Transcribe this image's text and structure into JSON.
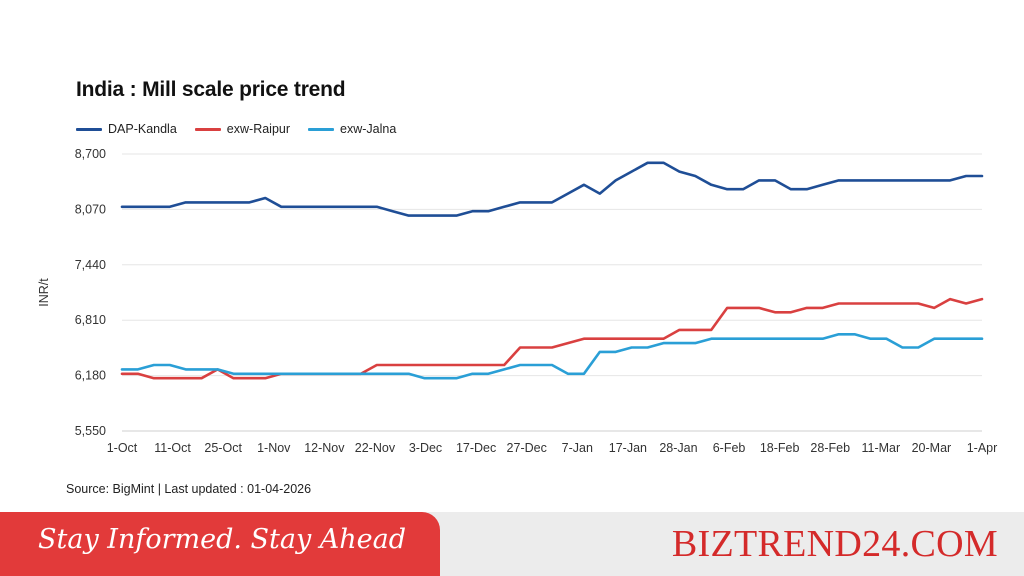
{
  "page": {
    "source_text": "Source: BigMint | Last updated : 01-04-2026",
    "banner_tagline": "Stay Informed. Stay Ahead",
    "brand": "BIZTREND24.COM"
  },
  "chart_data": {
    "type": "line",
    "title": "India : Mill scale price trend",
    "ylabel": "INR/t",
    "xlabel": "",
    "ylim": [
      5550,
      8700
    ],
    "yticks": [
      5550,
      6180,
      6810,
      7440,
      8070,
      8700
    ],
    "ytick_labels": [
      "5,550",
      "6,180",
      "6,810",
      "7,440",
      "8,070",
      "8,700"
    ],
    "xtick_labels": [
      "1-Oct",
      "11-Oct",
      "25-Oct",
      "1-Nov",
      "12-Nov",
      "22-Nov",
      "3-Dec",
      "17-Dec",
      "27-Dec",
      "7-Jan",
      "17-Jan",
      "28-Jan",
      "6-Feb",
      "18-Feb",
      "28-Feb",
      "11-Mar",
      "20-Mar",
      "1-Apr"
    ],
    "grid": true,
    "legend_position": "top-left",
    "series": [
      {
        "name": "DAP-Kandla",
        "color": "#1f4e96",
        "values": [
          8100,
          8100,
          8100,
          8100,
          8150,
          8150,
          8150,
          8150,
          8150,
          8200,
          8100,
          8100,
          8100,
          8100,
          8100,
          8100,
          8100,
          8050,
          8000,
          8000,
          8000,
          8000,
          8050,
          8050,
          8100,
          8150,
          8150,
          8150,
          8250,
          8350,
          8250,
          8400,
          8500,
          8600,
          8600,
          8500,
          8450,
          8350,
          8300,
          8300,
          8400,
          8400,
          8300,
          8300,
          8350,
          8400,
          8400,
          8400,
          8400,
          8400,
          8400,
          8400,
          8400,
          8450,
          8450
        ]
      },
      {
        "name": "exw-Raipur",
        "color": "#d94040",
        "values": [
          6200,
          6200,
          6150,
          6150,
          6150,
          6150,
          6250,
          6150,
          6150,
          6150,
          6200,
          6200,
          6200,
          6200,
          6200,
          6200,
          6300,
          6300,
          6300,
          6300,
          6300,
          6300,
          6300,
          6300,
          6300,
          6500,
          6500,
          6500,
          6550,
          6600,
          6600,
          6600,
          6600,
          6600,
          6600,
          6700,
          6700,
          6700,
          6950,
          6950,
          6950,
          6900,
          6900,
          6950,
          6950,
          7000,
          7000,
          7000,
          7000,
          7000,
          7000,
          6950,
          7050,
          7000,
          7050
        ]
      },
      {
        "name": "exw-Jalna",
        "color": "#2a9fd6",
        "values": [
          6250,
          6250,
          6300,
          6300,
          6250,
          6250,
          6250,
          6200,
          6200,
          6200,
          6200,
          6200,
          6200,
          6200,
          6200,
          6200,
          6200,
          6200,
          6200,
          6150,
          6150,
          6150,
          6200,
          6200,
          6250,
          6300,
          6300,
          6300,
          6200,
          6200,
          6450,
          6450,
          6500,
          6500,
          6550,
          6550,
          6550,
          6600,
          6600,
          6600,
          6600,
          6600,
          6600,
          6600,
          6600,
          6650,
          6650,
          6600,
          6600,
          6500,
          6500,
          6600,
          6600,
          6600,
          6600
        ]
      }
    ]
  }
}
